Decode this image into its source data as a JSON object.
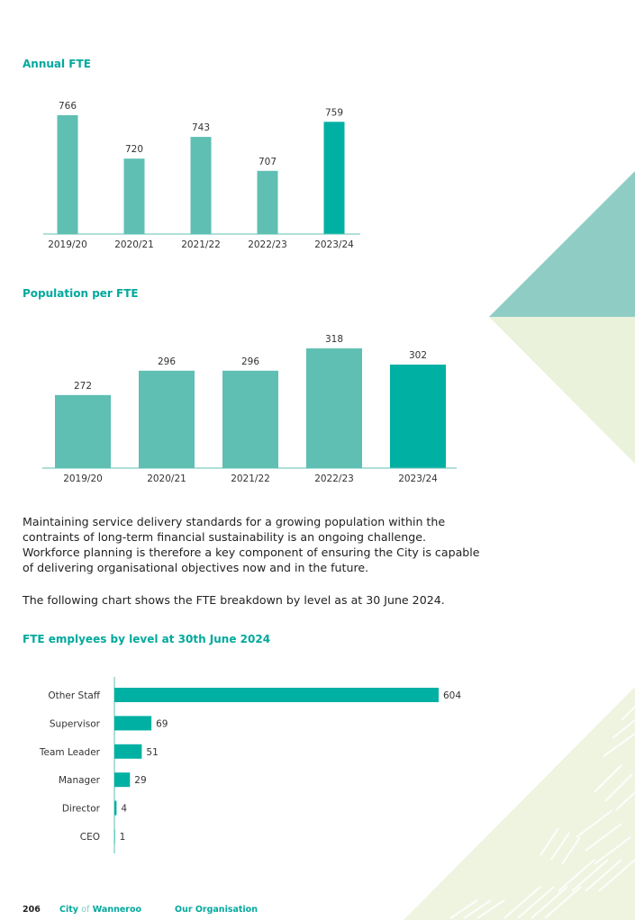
{
  "colors": {
    "accent": "#00a99d",
    "bar_light": "#5fbfb3",
    "bar_dark": "#00b0a3",
    "deco_teal": "#8fcdc4",
    "deco_green": "#eaf2db"
  },
  "charts": {
    "annual_fte": {
      "title": "Annual FTE"
    },
    "population_per_fte": {
      "title": "Population per FTE"
    },
    "fte_by_level": {
      "title": "FTE emplyees by level at 30th June 2024"
    }
  },
  "body": {
    "paragraph1": "Maintaining service delivery standards for a growing population within the contraints of long-term financial sustainability is an ongoing challenge. Workforce planning is therefore a key component of ensuring the City is capable of delivering organisational objectives now and in the future.",
    "paragraph2": "The following chart shows the FTE breakdown by level as at 30 June 2024."
  },
  "footer": {
    "page_number": "206",
    "city_word": "City",
    "of_word": "of",
    "wanneroo_word": "Wanneroo",
    "section": "Our Organisation"
  },
  "chart_data": [
    {
      "type": "bar",
      "title": "Annual FTE",
      "categories": [
        "2019/20",
        "2020/21",
        "2021/22",
        "2022/23",
        "2023/24"
      ],
      "values": [
        766,
        720,
        743,
        707,
        759
      ],
      "ylim": [
        640,
        766
      ],
      "highlight_index": 4,
      "grid": false
    },
    {
      "type": "bar",
      "title": "Population per FTE",
      "categories": [
        "2019/20",
        "2020/21",
        "2021/22",
        "2022/23",
        "2023/24"
      ],
      "values": [
        272,
        296,
        296,
        318,
        302
      ],
      "ylim": [
        200,
        318
      ],
      "highlight_index": 4,
      "grid": false
    },
    {
      "type": "bar",
      "orientation": "horizontal",
      "title": "FTE emplyees by level at 30th June 2024",
      "categories": [
        "Other Staff",
        "Supervisor",
        "Team Leader",
        "Manager",
        "Director",
        "CEO"
      ],
      "values": [
        604,
        69,
        51,
        29,
        4,
        1
      ],
      "xlim": [
        0,
        604
      ],
      "grid": false
    }
  ]
}
